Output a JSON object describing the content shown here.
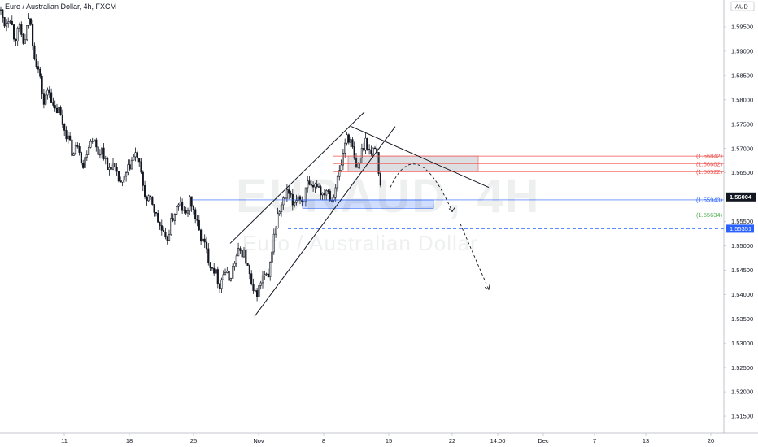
{
  "header": {
    "title": "Euro / Australian Dollar, 4h, FXCM"
  },
  "watermark": {
    "symbol": "EURAUD, 4H",
    "name": "Euro / Australian Dollar"
  },
  "currency_badge": "AUD",
  "chart_data": {
    "type": "candlestick",
    "title": "Euro / Australian Dollar, 4h, FXCM",
    "symbol": "EURAUD",
    "timeframe": "4h",
    "source": "FXCM",
    "x_ticks": [
      "11",
      "18",
      "25",
      "Nov",
      "8",
      "15",
      "22",
      "14:00",
      "Dec",
      "7",
      "13",
      "20"
    ],
    "y_ticks": [
      "1.59500",
      "1.59000",
      "1.58500",
      "1.58000",
      "1.57500",
      "1.57000",
      "1.56500",
      "1.55500",
      "1.55000",
      "1.54500",
      "1.54000",
      "1.53500",
      "1.53000",
      "1.52500",
      "1.52000",
      "1.51500"
    ],
    "ylim": [
      1.5115,
      1.6005
    ],
    "current_price": {
      "label": "1.56004",
      "value": 1.56004
    },
    "price_path": [
      [
        0,
        1.5985
      ],
      [
        6,
        1.5955
      ],
      [
        12,
        1.5975
      ],
      [
        18,
        1.5925
      ],
      [
        24,
        1.5945
      ],
      [
        30,
        1.591
      ],
      [
        36,
        1.5975
      ],
      [
        42,
        1.5895
      ],
      [
        48,
        1.5855
      ],
      [
        54,
        1.579
      ],
      [
        60,
        1.583
      ],
      [
        66,
        1.5775
      ],
      [
        72,
        1.578
      ],
      [
        78,
        1.5745
      ],
      [
        84,
        1.572
      ],
      [
        90,
        1.5685
      ],
      [
        96,
        1.5715
      ],
      [
        102,
        1.566
      ],
      [
        108,
        1.5705
      ],
      [
        114,
        1.5725
      ],
      [
        120,
        1.569
      ],
      [
        126,
        1.57
      ],
      [
        132,
        1.5655
      ],
      [
        138,
        1.567
      ],
      [
        144,
        1.564
      ],
      [
        150,
        1.5625
      ],
      [
        156,
        1.565
      ],
      [
        162,
        1.5675
      ],
      [
        168,
        1.569
      ],
      [
        174,
        1.564
      ],
      [
        180,
        1.559
      ],
      [
        186,
        1.5595
      ],
      [
        192,
        1.556
      ],
      [
        198,
        1.5535
      ],
      [
        204,
        1.5505
      ],
      [
        210,
        1.5545
      ],
      [
        216,
        1.5575
      ],
      [
        222,
        1.5585
      ],
      [
        228,
        1.556
      ],
      [
        234,
        1.5595
      ],
      [
        240,
        1.556
      ],
      [
        246,
        1.552
      ],
      [
        252,
        1.55
      ],
      [
        258,
        1.5465
      ],
      [
        264,
        1.545
      ],
      [
        270,
        1.542
      ],
      [
        276,
        1.545
      ],
      [
        282,
        1.543
      ],
      [
        288,
        1.5465
      ],
      [
        294,
        1.549
      ],
      [
        300,
        1.5485
      ],
      [
        306,
        1.5445
      ],
      [
        312,
        1.5395
      ],
      [
        318,
        1.541
      ],
      [
        324,
        1.544
      ],
      [
        330,
        1.543
      ],
      [
        336,
        1.5515
      ],
      [
        342,
        1.5565
      ],
      [
        348,
        1.559
      ],
      [
        354,
        1.561
      ],
      [
        360,
        1.5585
      ],
      [
        366,
        1.5605
      ],
      [
        372,
        1.559
      ],
      [
        378,
        1.5625
      ],
      [
        384,
        1.561
      ],
      [
        390,
        1.563
      ],
      [
        396,
        1.5605
      ],
      [
        402,
        1.562
      ],
      [
        408,
        1.5595
      ],
      [
        414,
        1.563
      ],
      [
        420,
        1.567
      ],
      [
        426,
        1.573
      ],
      [
        432,
        1.571
      ],
      [
        438,
        1.5655
      ],
      [
        444,
        1.569
      ],
      [
        450,
        1.572
      ],
      [
        456,
        1.5685
      ],
      [
        462,
        1.571
      ],
      [
        466,
        1.565
      ],
      [
        470,
        1.56
      ]
    ],
    "shapes": {
      "channel_lower": [
        [
          313,
          1.5355
        ],
        [
          486,
          1.5745
        ]
      ],
      "channel_upper": [
        [
          283,
          1.5505
        ],
        [
          448,
          1.5775
        ]
      ],
      "resistance_trendline": [
        [
          432,
          1.5745
        ],
        [
          601,
          1.562
        ]
      ],
      "supply_zone": {
        "x_start": 428,
        "x_end": 588,
        "top": 1.56842,
        "bottom": 1.56522
      },
      "demand_zone": {
        "x_start": 372,
        "x_end": 533,
        "top": 1.55943,
        "bottom": 1.5577
      },
      "projection_1": [
        [
          480,
          1.562
        ],
        [
          512,
          1.567
        ],
        [
          556,
          1.557
        ]
      ],
      "projection_2": [
        [
          566,
          1.5545
        ],
        [
          601,
          1.541
        ]
      ]
    },
    "levels": [
      {
        "label": "(1.56842)",
        "value": 1.56842,
        "color": "#ef5350",
        "style": "solid",
        "x_start": 410
      },
      {
        "label": "(1.56682)",
        "value": 1.56682,
        "color": "#ef5350",
        "style": "solid",
        "x_start": 410
      },
      {
        "label": "(1.56522)",
        "value": 1.56522,
        "color": "#ef5350",
        "style": "solid",
        "x_start": 410
      },
      {
        "label": "(1.55943)",
        "value": 1.55943,
        "color": "#2962ff",
        "style": "solid",
        "x_start": 236
      },
      {
        "label": "(1.55634)",
        "value": 1.55634,
        "color": "#4caf50",
        "style": "solid",
        "x_start": 410
      },
      {
        "label": "1.55351",
        "value": 1.55351,
        "color": "#2962ff",
        "style": "dashed",
        "x_start": 354
      }
    ]
  }
}
